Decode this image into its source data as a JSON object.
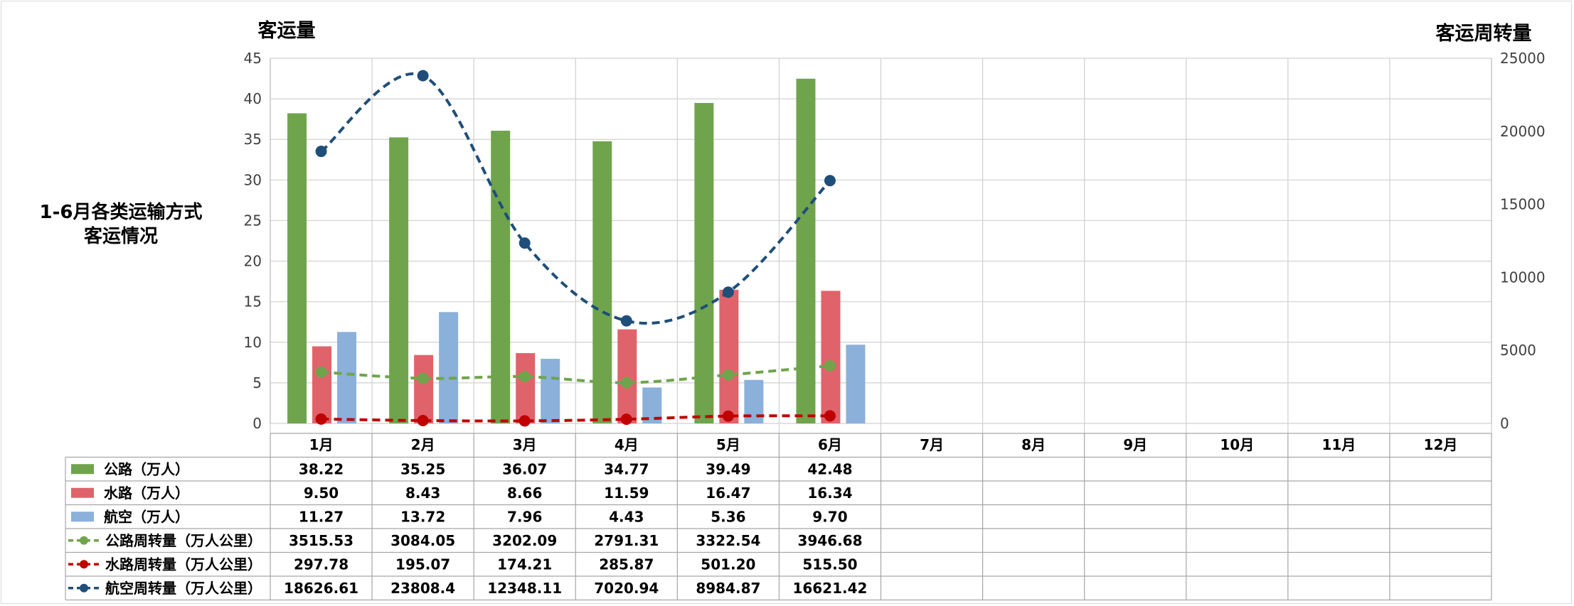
{
  "side_title_line1": "1-6月各类运输方式",
  "side_title_line2": "客运情况",
  "chart_data": {
    "type": "bar",
    "title": "1-6月各类运输方式客运情况",
    "ylabel": "客运量",
    "ylabel_right": "客运周转量",
    "ylim": [
      0,
      45
    ],
    "ylim_right": [
      0,
      25000
    ],
    "yticks": [
      0,
      5,
      10,
      15,
      20,
      25,
      30,
      35,
      40,
      45
    ],
    "yticks_right": [
      0,
      5000,
      10000,
      15000,
      20000,
      25000
    ],
    "grid": true,
    "legend": "data-table",
    "categories": [
      "1月",
      "2月",
      "3月",
      "4月",
      "5月",
      "6月",
      "7月",
      "8月",
      "9月",
      "10月",
      "11月",
      "12月"
    ],
    "series": [
      {
        "name": "公路（万人）",
        "type": "bar",
        "axis": "left",
        "color": "#70a44c",
        "values": [
          38.22,
          35.25,
          36.07,
          34.77,
          39.49,
          42.48,
          null,
          null,
          null,
          null,
          null,
          null
        ]
      },
      {
        "name": "水路（万人）",
        "type": "bar",
        "axis": "left",
        "color": "#e0636b",
        "values": [
          9.5,
          8.43,
          8.66,
          11.59,
          16.47,
          16.34,
          null,
          null,
          null,
          null,
          null,
          null
        ]
      },
      {
        "name": "航空（万人）",
        "type": "bar",
        "axis": "left",
        "color": "#8bb0da",
        "values": [
          11.27,
          13.72,
          7.96,
          4.43,
          5.36,
          9.7,
          null,
          null,
          null,
          null,
          null,
          null
        ]
      },
      {
        "name": "公路周转量（万人公里）",
        "type": "line",
        "axis": "right",
        "color": "#70a44c",
        "values": [
          3515.53,
          3084.05,
          3202.09,
          2791.31,
          3322.54,
          3946.68,
          null,
          null,
          null,
          null,
          null,
          null
        ]
      },
      {
        "name": "水路周转量（万人公里）",
        "type": "line",
        "axis": "right",
        "color": "#c00000",
        "values": [
          297.78,
          195.07,
          174.21,
          285.87,
          501.2,
          515.5,
          null,
          null,
          null,
          null,
          null,
          null
        ]
      },
      {
        "name": "航空周转量（万人公里）",
        "type": "line",
        "axis": "right",
        "color": "#1f4e79",
        "values": [
          18626.61,
          23808.4,
          12348.11,
          7020.94,
          8984.87,
          16621.42,
          null,
          null,
          null,
          null,
          null,
          null
        ]
      }
    ],
    "table_text": [
      [
        "38.22",
        "35.25",
        "36.07",
        "34.77",
        "39.49",
        "42.48"
      ],
      [
        "9.50",
        "8.43",
        "8.66",
        "11.59",
        "16.47",
        "16.34"
      ],
      [
        "11.27",
        "13.72",
        "7.96",
        "4.43",
        "5.36",
        "9.70"
      ],
      [
        "3515.53",
        "3084.05",
        "3202.09",
        "2791.31",
        "3322.54",
        "3946.68"
      ],
      [
        "297.78",
        "195.07",
        "174.21",
        "285.87",
        "501.20",
        "515.50"
      ],
      [
        "18626.61",
        "23808.4",
        "12348.11",
        "7020.94",
        "8984.87",
        "16621.42"
      ]
    ]
  }
}
